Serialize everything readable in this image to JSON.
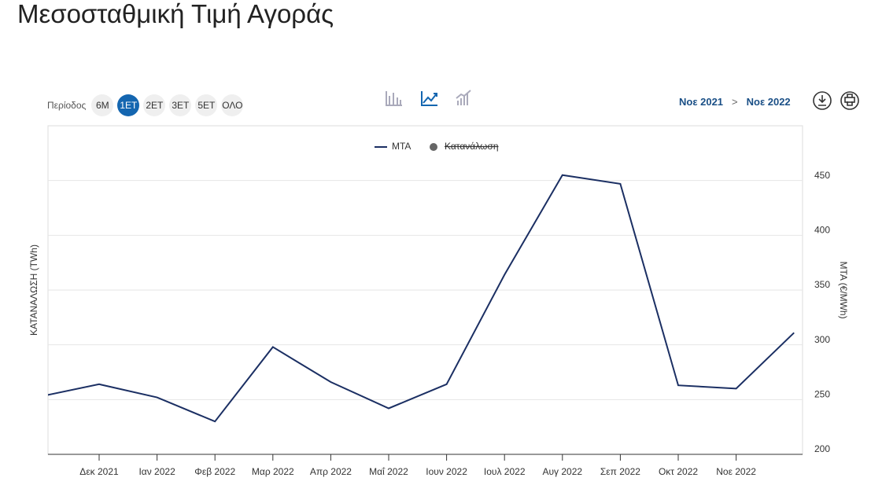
{
  "header": {
    "title": "Μεσοσταθμική Τιμή Αγοράς"
  },
  "toolbar": {
    "period_label": "Περίοδος",
    "periods": [
      "6M",
      "1ET",
      "2ET",
      "3ET",
      "5ET",
      "ΟΛΟ"
    ],
    "active_period": 1
  },
  "date_range": {
    "from": "Νοε 2021",
    "separator": ">",
    "to": "Νοε 2022"
  },
  "chart_data": {
    "type": "line",
    "categories": [
      null,
      "Δεκ 2021",
      "Ιαν 2022",
      "Φεβ 2022",
      "Μαρ 2022",
      "Απρ 2022",
      "Μαΐ 2022",
      "Ιουν 2022",
      "Ιουλ 2022",
      "Αυγ 2022",
      "Σεπ 2022",
      "Οκτ 2022",
      "Νοε 2022",
      null
    ],
    "series": [
      {
        "name": "MTA",
        "color": "#1b2f63",
        "axis": "y2",
        "values": [
          253,
          264,
          252,
          230,
          298,
          266,
          242,
          264,
          364,
          455,
          447,
          263,
          260,
          311
        ]
      }
    ],
    "hidden_series": {
      "name": "Κατανάλωση",
      "color": "#666666"
    },
    "ylabel": "ΚΑΤΑΝΑΛΩΣΗ (TWh)",
    "y2label": "MTA (€/MWh)",
    "y2lim": [
      200,
      500
    ],
    "y2ticks": [
      200,
      250,
      300,
      350,
      400,
      450
    ],
    "grid": true
  }
}
